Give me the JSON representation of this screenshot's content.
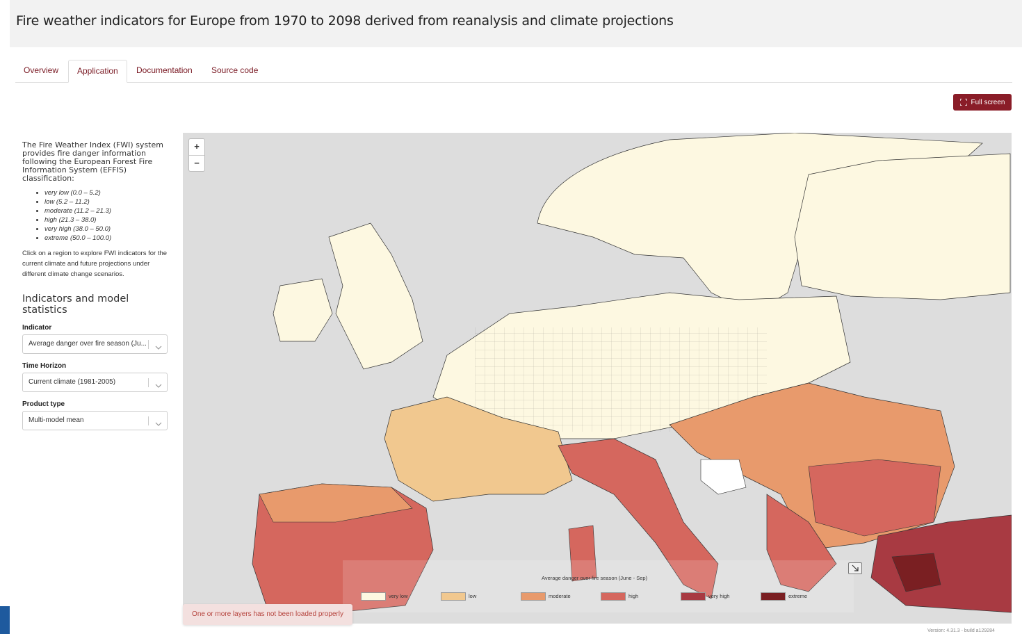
{
  "header": {
    "title": "Fire weather indicators for Europe from 1970 to 2098 derived from reanalysis and climate projections"
  },
  "tabs": [
    {
      "label": "Overview",
      "active": false
    },
    {
      "label": "Application",
      "active": true
    },
    {
      "label": "Documentation",
      "active": false
    },
    {
      "label": "Source code",
      "active": false
    }
  ],
  "toolbar": {
    "fullscreen_label": "Full screen"
  },
  "sidebar": {
    "intro": "The Fire Weather Index (FWI) system provides fire danger information following the European Forest Fire Information System (EFFIS) classification:",
    "levels": [
      "very low (0.0 – 5.2)",
      "low (5.2 – 11.2)",
      "moderate (11.2 – 21.3)",
      "high (21.3 – 38.0)",
      "very high (38.0 – 50.0)",
      "extreme (50.0 – 100.0)"
    ],
    "click_text": "Click on a region to explore FWI indicators for the current climate and future projections under different climate change scenarios.",
    "section_title": "Indicators and model statistics",
    "fields": {
      "indicator": {
        "label": "Indicator",
        "value": "Average danger over fire season (Ju..."
      },
      "time_horizon": {
        "label": "Time Horizon",
        "value": "Current climate (1981-2005)"
      },
      "product_type": {
        "label": "Product type",
        "value": "Multi-model mean"
      }
    }
  },
  "map": {
    "zoom_in": "+",
    "zoom_out": "−",
    "legend_title": "Average danger over fire season (June - Sep)",
    "legend": [
      {
        "label": "very low",
        "color": "#fdf8e1"
      },
      {
        "label": "low",
        "color": "#f1c88f"
      },
      {
        "label": "moderate",
        "color": "#e89a6c"
      },
      {
        "label": "high",
        "color": "#d5675e"
      },
      {
        "label": "very high",
        "color": "#a83a42"
      },
      {
        "label": "extreme",
        "color": "#7a1f22"
      }
    ],
    "warning": "One or more layers has not been loaded properly"
  },
  "footer": {
    "version": "Version: 4.31.3 - build a129284"
  },
  "colors": {
    "accent": "#8a1d28",
    "tab_text": "#7a1a24",
    "sea": "#dddddd"
  }
}
